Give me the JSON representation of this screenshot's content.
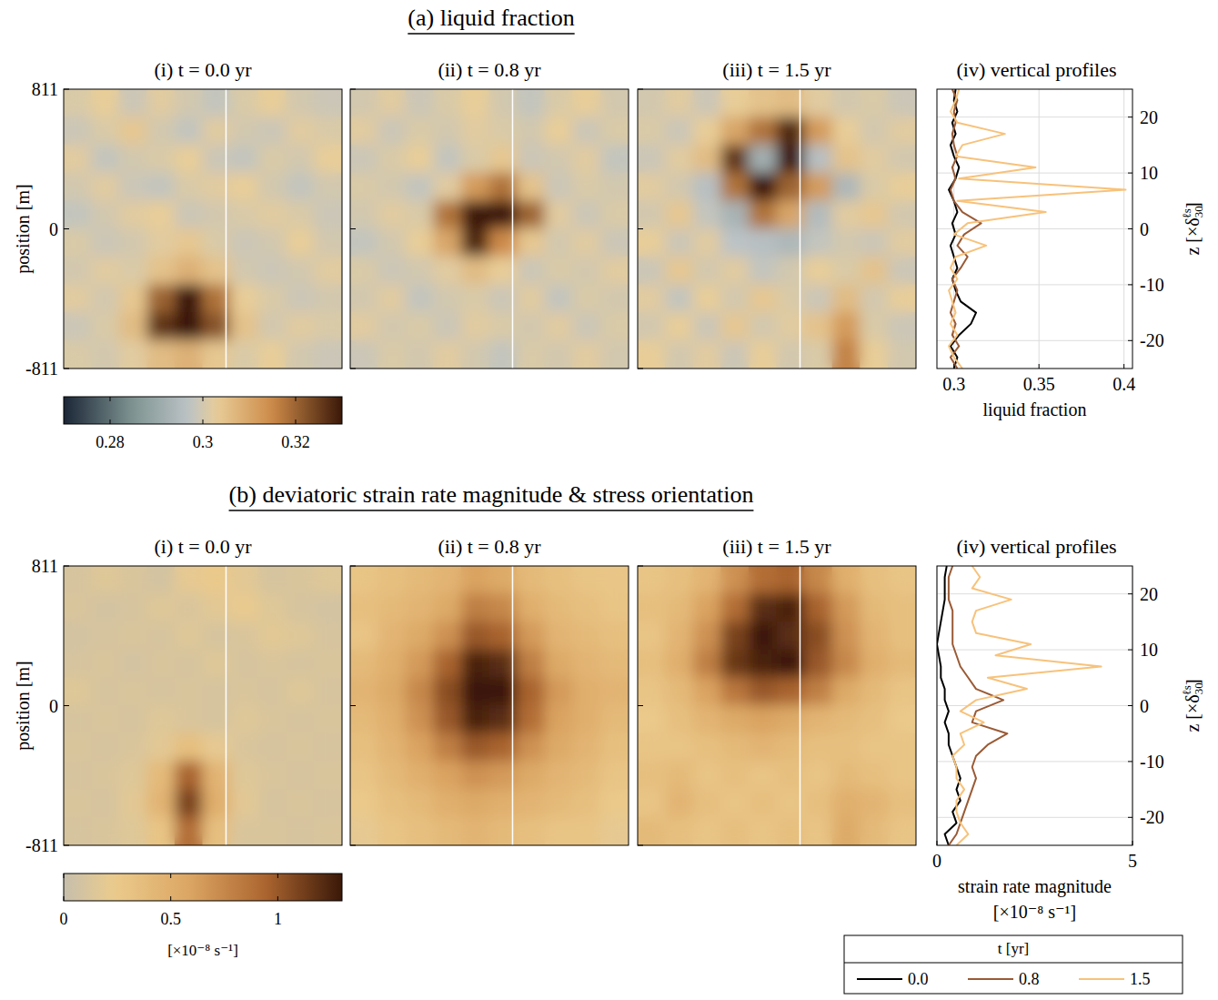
{
  "chart_data": [
    {
      "type": "heatmap",
      "section_title": "(a) liquid fraction",
      "title": "(i) t = 0.0 yr",
      "ylabel": "position [m]",
      "xlim": [
        -811,
        811
      ],
      "ylim": [
        -811,
        811
      ],
      "yticks": [
        -811,
        0,
        811
      ],
      "tick_labels": "y",
      "profile_x": 135,
      "colorbar": {
        "range": [
          0.27,
          0.33
        ],
        "ticks": [
          0.28,
          0.3,
          0.32
        ]
      },
      "cells": [
        [
          0.301,
          0.303,
          0.299,
          0.302,
          0.3,
          0.298,
          0.301,
          0.303,
          0.3,
          0.299
        ],
        [
          0.299,
          0.301,
          0.304,
          0.3,
          0.298,
          0.302,
          0.3,
          0.299,
          0.302,
          0.301
        ],
        [
          0.302,
          0.298,
          0.3,
          0.301,
          0.303,
          0.299,
          0.298,
          0.301,
          0.3,
          0.303
        ],
        [
          0.3,
          0.302,
          0.299,
          0.298,
          0.301,
          0.302,
          0.303,
          0.3,
          0.298,
          0.3
        ],
        [
          0.298,
          0.3,
          0.302,
          0.303,
          0.299,
          0.3,
          0.301,
          0.302,
          0.301,
          0.299
        ],
        [
          0.301,
          0.299,
          0.3,
          0.302,
          0.304,
          0.301,
          0.299,
          0.3,
          0.303,
          0.3
        ],
        [
          0.3,
          0.302,
          0.301,
          0.305,
          0.308,
          0.305,
          0.3,
          0.299,
          0.3,
          0.302
        ],
        [
          0.302,
          0.3,
          0.304,
          0.32,
          0.33,
          0.318,
          0.303,
          0.301,
          0.299,
          0.3
        ],
        [
          0.299,
          0.301,
          0.306,
          0.326,
          0.332,
          0.322,
          0.305,
          0.3,
          0.302,
          0.301
        ],
        [
          0.301,
          0.3,
          0.302,
          0.306,
          0.308,
          0.304,
          0.301,
          0.303,
          0.3,
          0.299
        ]
      ]
    },
    {
      "type": "heatmap",
      "title": "(ii) t = 0.8 yr",
      "xlim": [
        -811,
        811
      ],
      "ylim": [
        -811,
        811
      ],
      "yticks": [
        -811,
        0,
        811
      ],
      "tick_labels": false,
      "profile_x": 135,
      "cells": [
        [
          0.3,
          0.302,
          0.299,
          0.301,
          0.303,
          0.3,
          0.298,
          0.301,
          0.303,
          0.3
        ],
        [
          0.302,
          0.299,
          0.301,
          0.3,
          0.302,
          0.301,
          0.3,
          0.303,
          0.299,
          0.301
        ],
        [
          0.299,
          0.301,
          0.303,
          0.298,
          0.301,
          0.304,
          0.299,
          0.3,
          0.302,
          0.298
        ],
        [
          0.301,
          0.3,
          0.298,
          0.302,
          0.312,
          0.318,
          0.305,
          0.299,
          0.301,
          0.3
        ],
        [
          0.3,
          0.302,
          0.301,
          0.318,
          0.331,
          0.333,
          0.32,
          0.302,
          0.299,
          0.301
        ],
        [
          0.298,
          0.3,
          0.303,
          0.31,
          0.328,
          0.315,
          0.304,
          0.3,
          0.302,
          0.299
        ],
        [
          0.301,
          0.299,
          0.3,
          0.302,
          0.306,
          0.303,
          0.299,
          0.301,
          0.3,
          0.302
        ],
        [
          0.3,
          0.302,
          0.298,
          0.3,
          0.301,
          0.299,
          0.302,
          0.298,
          0.301,
          0.3
        ],
        [
          0.302,
          0.3,
          0.301,
          0.299,
          0.302,
          0.301,
          0.3,
          0.302,
          0.299,
          0.301
        ],
        [
          0.299,
          0.301,
          0.3,
          0.302,
          0.3,
          0.298,
          0.301,
          0.3,
          0.302,
          0.3
        ]
      ]
    },
    {
      "type": "heatmap",
      "title": "(iii) t = 1.5 yr",
      "xlim": [
        -811,
        811
      ],
      "ylim": [
        -811,
        811
      ],
      "yticks": [
        -811,
        0,
        811
      ],
      "tick_labels": false,
      "profile_x": 135,
      "cells": [
        [
          0.3,
          0.302,
          0.299,
          0.303,
          0.305,
          0.306,
          0.302,
          0.3,
          0.301,
          0.299
        ],
        [
          0.301,
          0.299,
          0.303,
          0.31,
          0.318,
          0.328,
          0.312,
          0.303,
          0.3,
          0.302
        ],
        [
          0.299,
          0.302,
          0.306,
          0.326,
          0.292,
          0.332,
          0.296,
          0.305,
          0.302,
          0.3
        ],
        [
          0.302,
          0.3,
          0.296,
          0.318,
          0.33,
          0.32,
          0.312,
          0.294,
          0.301,
          0.303
        ],
        [
          0.3,
          0.304,
          0.298,
          0.293,
          0.318,
          0.31,
          0.295,
          0.302,
          0.304,
          0.3
        ],
        [
          0.303,
          0.299,
          0.302,
          0.297,
          0.296,
          0.294,
          0.298,
          0.3,
          0.299,
          0.302
        ],
        [
          0.299,
          0.304,
          0.3,
          0.302,
          0.298,
          0.3,
          0.303,
          0.301,
          0.305,
          0.299
        ],
        [
          0.302,
          0.298,
          0.303,
          0.3,
          0.304,
          0.301,
          0.299,
          0.306,
          0.3,
          0.303
        ],
        [
          0.3,
          0.303,
          0.299,
          0.304,
          0.3,
          0.302,
          0.305,
          0.312,
          0.301,
          0.299
        ],
        [
          0.303,
          0.3,
          0.302,
          0.299,
          0.303,
          0.3,
          0.301,
          0.316,
          0.303,
          0.3
        ]
      ]
    },
    {
      "type": "line",
      "title": "(iv) vertical profiles",
      "xlabel": [
        "liquid fraction"
      ],
      "ylabel": {
        "text": "z [×δ",
        "sub": "30",
        "sup": "ℓs",
        "close": "]"
      },
      "xlim": [
        0.29,
        0.405
      ],
      "xticks": [
        0.3,
        0.35,
        0.4
      ],
      "ylim": [
        -25,
        25
      ],
      "yticks": [
        -20,
        -10,
        0,
        10,
        20
      ],
      "grid": true,
      "z": [
        -25,
        -23,
        -21,
        -19,
        -17,
        -15,
        -13,
        -11,
        -9,
        -7,
        -5,
        -3,
        -1,
        1,
        3,
        5,
        7,
        9,
        11,
        13,
        15,
        17,
        19,
        21,
        23,
        25
      ],
      "series": [
        {
          "name": "0.0",
          "color": "#000000",
          "values": [
            0.3,
            0.302,
            0.298,
            0.303,
            0.31,
            0.313,
            0.304,
            0.301,
            0.299,
            0.302,
            0.3,
            0.298,
            0.301,
            0.299,
            0.302,
            0.3,
            0.297,
            0.301,
            0.303,
            0.3,
            0.298,
            0.301,
            0.299,
            0.302,
            0.3,
            0.301
          ]
        },
        {
          "name": "0.8",
          "color": "#9a5a35",
          "values": [
            0.302,
            0.298,
            0.303,
            0.299,
            0.301,
            0.298,
            0.3,
            0.302,
            0.299,
            0.304,
            0.308,
            0.302,
            0.306,
            0.316,
            0.305,
            0.3,
            0.298,
            0.301,
            0.299,
            0.302,
            0.3,
            0.299,
            0.301,
            0.3,
            0.302,
            0.299
          ]
        },
        {
          "name": "1.5",
          "color": "#f7c27b",
          "values": [
            0.305,
            0.3,
            0.297,
            0.302,
            0.298,
            0.301,
            0.299,
            0.297,
            0.302,
            0.298,
            0.301,
            0.319,
            0.3,
            0.308,
            0.354,
            0.302,
            0.401,
            0.303,
            0.348,
            0.301,
            0.305,
            0.33,
            0.302,
            0.298,
            0.301,
            0.303
          ]
        }
      ]
    },
    {
      "type": "heatmap",
      "section_title": "(b) deviatoric strain rate magnitude & stress orientation",
      "title": "(i) t = 0.0 yr",
      "ylabel": "position [m]",
      "xlim": [
        -811,
        811
      ],
      "ylim": [
        -811,
        811
      ],
      "yticks": [
        -811,
        0,
        811
      ],
      "tick_labels": "y",
      "profile_x": 135,
      "colorbar": {
        "range": [
          0,
          1.3
        ],
        "ticks": [
          0,
          0.5,
          1
        ],
        "label": "[×10⁻⁸ s⁻¹]"
      },
      "cells": [
        [
          0.1,
          0.15,
          0.12,
          0.08,
          0.2,
          0.25,
          0.18,
          0.1,
          0.12,
          0.15
        ],
        [
          0.12,
          0.08,
          0.1,
          0.15,
          0.12,
          0.18,
          0.22,
          0.15,
          0.1,
          0.08
        ],
        [
          0.08,
          0.1,
          0.12,
          0.1,
          0.15,
          0.1,
          0.12,
          0.18,
          0.15,
          0.1
        ],
        [
          0.1,
          0.12,
          0.08,
          0.12,
          0.1,
          0.15,
          0.1,
          0.12,
          0.1,
          0.12
        ],
        [
          0.15,
          0.1,
          0.12,
          0.1,
          0.12,
          0.1,
          0.12,
          0.1,
          0.15,
          0.1
        ],
        [
          0.1,
          0.12,
          0.1,
          0.15,
          0.12,
          0.1,
          0.15,
          0.12,
          0.1,
          0.12
        ],
        [
          0.12,
          0.1,
          0.12,
          0.18,
          0.35,
          0.2,
          0.12,
          0.1,
          0.12,
          0.1
        ],
        [
          0.1,
          0.12,
          0.15,
          0.4,
          0.95,
          0.45,
          0.15,
          0.12,
          0.1,
          0.12
        ],
        [
          0.12,
          0.1,
          0.18,
          0.45,
          1.1,
          0.5,
          0.18,
          0.1,
          0.12,
          0.1
        ],
        [
          0.1,
          0.12,
          0.15,
          0.3,
          0.9,
          0.35,
          0.12,
          0.12,
          0.1,
          0.12
        ]
      ]
    },
    {
      "type": "heatmap",
      "title": "(ii) t = 0.8 yr",
      "xlim": [
        -811,
        811
      ],
      "ylim": [
        -811,
        811
      ],
      "yticks": [
        -811,
        0,
        811
      ],
      "tick_labels": false,
      "profile_x": 135,
      "cells": [
        [
          0.3,
          0.35,
          0.4,
          0.45,
          0.6,
          0.55,
          0.4,
          0.35,
          0.3,
          0.28
        ],
        [
          0.35,
          0.4,
          0.45,
          0.55,
          0.8,
          0.75,
          0.5,
          0.4,
          0.35,
          0.3
        ],
        [
          0.3,
          0.45,
          0.55,
          0.7,
          1.0,
          0.95,
          0.65,
          0.45,
          0.4,
          0.35
        ],
        [
          0.4,
          0.5,
          0.65,
          0.95,
          1.25,
          1.2,
          0.8,
          0.55,
          0.45,
          0.4
        ],
        [
          0.45,
          0.55,
          0.75,
          1.05,
          1.3,
          1.3,
          0.95,
          0.65,
          0.5,
          0.45
        ],
        [
          0.4,
          0.5,
          0.7,
          1.0,
          1.25,
          1.2,
          0.9,
          0.6,
          0.5,
          0.4
        ],
        [
          0.35,
          0.45,
          0.6,
          0.8,
          1.0,
          0.95,
          0.7,
          0.55,
          0.45,
          0.35
        ],
        [
          0.3,
          0.4,
          0.5,
          0.6,
          0.7,
          0.65,
          0.55,
          0.45,
          0.4,
          0.3
        ],
        [
          0.25,
          0.35,
          0.4,
          0.5,
          0.55,
          0.5,
          0.45,
          0.4,
          0.35,
          0.25
        ],
        [
          0.2,
          0.3,
          0.35,
          0.4,
          0.45,
          0.4,
          0.35,
          0.3,
          0.3,
          0.2
        ]
      ]
    },
    {
      "type": "heatmap",
      "title": "(iii) t = 1.5 yr",
      "xlim": [
        -811,
        811
      ],
      "ylim": [
        -811,
        811
      ],
      "yticks": [
        -811,
        0,
        811
      ],
      "tick_labels": false,
      "profile_x": 135,
      "cells": [
        [
          0.3,
          0.35,
          0.45,
          0.7,
          0.9,
          0.95,
          0.75,
          0.5,
          0.35,
          0.3
        ],
        [
          0.35,
          0.4,
          0.6,
          0.9,
          1.2,
          1.25,
          0.95,
          0.65,
          0.4,
          0.35
        ],
        [
          0.3,
          0.45,
          0.7,
          1.1,
          1.3,
          1.2,
          1.05,
          0.7,
          0.45,
          0.35
        ],
        [
          0.35,
          0.5,
          0.8,
          1.15,
          1.25,
          1.3,
          1.0,
          0.75,
          0.5,
          0.4
        ],
        [
          0.3,
          0.4,
          0.6,
          0.85,
          1.0,
          0.95,
          0.8,
          0.55,
          0.4,
          0.3
        ],
        [
          0.25,
          0.35,
          0.45,
          0.55,
          0.6,
          0.55,
          0.45,
          0.4,
          0.35,
          0.25
        ],
        [
          0.3,
          0.3,
          0.35,
          0.4,
          0.45,
          0.4,
          0.35,
          0.35,
          0.3,
          0.3
        ],
        [
          0.35,
          0.4,
          0.3,
          0.35,
          0.3,
          0.35,
          0.3,
          0.4,
          0.35,
          0.3
        ],
        [
          0.3,
          0.45,
          0.35,
          0.3,
          0.35,
          0.3,
          0.35,
          0.5,
          0.45,
          0.35
        ],
        [
          0.4,
          0.35,
          0.3,
          0.35,
          0.3,
          0.35,
          0.3,
          0.55,
          0.4,
          0.3
        ]
      ]
    },
    {
      "type": "line",
      "title": "(iv) vertical profiles",
      "xlabel": [
        "strain rate magnitude",
        "[×10⁻⁸ s⁻¹]"
      ],
      "ylabel": {
        "text": "z [×δ",
        "sub": "30",
        "sup": "ℓs",
        "close": "]"
      },
      "xlim": [
        0,
        5
      ],
      "xticks": [
        0,
        5
      ],
      "ylim": [
        -25,
        25
      ],
      "yticks": [
        -20,
        -10,
        0,
        10,
        20
      ],
      "grid": true,
      "legend": "bottom",
      "legend_title": "t [yr]",
      "z": [
        -25,
        -23,
        -21,
        -19,
        -17,
        -15,
        -13,
        -11,
        -9,
        -7,
        -5,
        -3,
        -1,
        1,
        3,
        5,
        7,
        9,
        11,
        13,
        15,
        17,
        19,
        21,
        23,
        25
      ],
      "series": [
        {
          "name": "0.0",
          "color": "#000000",
          "values": [
            0.3,
            0.2,
            0.5,
            0.4,
            0.6,
            0.5,
            0.6,
            0.5,
            0.4,
            0.3,
            0.3,
            0.2,
            0.3,
            0.2,
            0.2,
            0.1,
            0.1,
            0.05,
            0.0,
            0.05,
            0.1,
            0.15,
            0.2,
            0.2,
            0.2,
            0.25
          ]
        },
        {
          "name": "0.8",
          "color": "#9a5a35",
          "values": [
            0.3,
            0.5,
            0.6,
            0.7,
            0.8,
            0.9,
            1.0,
            0.9,
            1.0,
            1.3,
            1.8,
            0.9,
            1.0,
            1.7,
            1.0,
            0.8,
            0.6,
            0.5,
            0.4,
            0.4,
            0.4,
            0.4,
            0.3,
            0.3,
            0.3,
            0.4
          ]
        },
        {
          "name": "1.5",
          "color": "#f7c27b",
          "values": [
            0.5,
            0.8,
            0.6,
            0.5,
            0.5,
            0.7,
            0.5,
            0.5,
            0.4,
            0.7,
            0.6,
            1.2,
            0.6,
            1.0,
            2.3,
            1.3,
            4.2,
            1.5,
            2.4,
            1.0,
            0.9,
            1.0,
            1.9,
            0.9,
            1.1,
            0.9
          ]
        }
      ]
    }
  ]
}
